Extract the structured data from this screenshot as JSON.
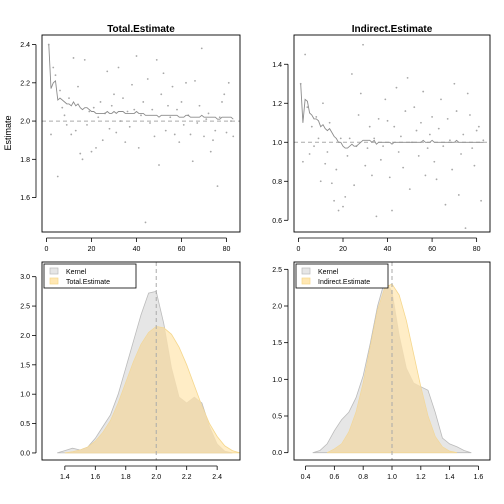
{
  "y_axis_label": "Estimate",
  "chart_data": [
    {
      "type": "scatter",
      "panel": "top-left",
      "title": "Total.Estimate",
      "ylabel": "Estimate",
      "xlim": [
        -2,
        86
      ],
      "ylim": [
        1.42,
        2.45
      ],
      "xticks": [
        0,
        20,
        40,
        60,
        80
      ],
      "yticks": [
        1.6,
        1.8,
        2.0,
        2.2,
        2.4
      ],
      "reference_line": 2.0,
      "points_x": [
        1,
        2,
        3,
        4,
        5,
        6,
        7,
        8,
        9,
        10,
        11,
        12,
        13,
        14,
        15,
        16,
        17,
        18,
        19,
        20,
        21,
        22,
        23,
        24,
        25,
        26,
        27,
        28,
        29,
        30,
        31,
        32,
        33,
        34,
        35,
        36,
        37,
        38,
        39,
        40,
        41,
        42,
        43,
        44,
        45,
        46,
        47,
        48,
        49,
        50,
        51,
        52,
        53,
        54,
        55,
        56,
        57,
        58,
        59,
        60,
        61,
        62,
        63,
        64,
        65,
        66,
        67,
        68,
        69,
        70,
        71,
        72,
        73,
        74,
        75,
        76,
        77,
        78,
        79,
        80,
        81,
        82,
        83
      ],
      "points_y": [
        2.4,
        1.93,
        2.28,
        2.24,
        1.71,
        2.16,
        2.07,
        2.03,
        1.98,
        2.12,
        1.93,
        2.33,
        1.95,
        2.18,
        1.83,
        1.8,
        2.32,
        1.98,
        2.05,
        1.84,
        2.07,
        1.86,
        2.02,
        2.1,
        1.9,
        2.04,
        2.26,
        1.96,
        2.08,
        2.14,
        1.94,
        2.28,
        2.0,
        2.12,
        1.89,
        2.05,
        1.97,
        2.19,
        2.06,
        2.34,
        1.86,
        2.03,
        2.1,
        1.47,
        2.22,
        1.99,
        2.06,
        1.92,
        2.32,
        1.77,
        2.14,
        2.25,
        1.95,
        2.08,
        2.02,
        2.18,
        1.93,
        2.06,
        1.89,
        2.1,
        1.98,
        2.2,
        2.03,
        1.93,
        1.79,
        2.21,
        1.99,
        2.08,
        2.38,
        1.92,
        2.01,
        2.04,
        1.84,
        1.9,
        1.95,
        1.66,
        2.02,
        2.1,
        2.14,
        1.94,
        2.2,
        2.0,
        1.92
      ],
      "running_mean": [
        2.4,
        2.17,
        2.2,
        2.21,
        2.11,
        2.12,
        2.11,
        2.1,
        2.09,
        2.09,
        2.08,
        2.1,
        2.08,
        2.09,
        2.07,
        2.06,
        2.07,
        2.07,
        2.06,
        2.05,
        2.05,
        2.04,
        2.04,
        2.04,
        2.04,
        2.04,
        2.05,
        2.04,
        2.04,
        2.05,
        2.04,
        2.05,
        2.05,
        2.05,
        2.04,
        2.04,
        2.04,
        2.04,
        2.04,
        2.05,
        2.04,
        2.04,
        2.04,
        2.03,
        2.03,
        2.03,
        2.03,
        2.03,
        2.03,
        2.02,
        2.03,
        2.03,
        2.03,
        2.03,
        2.03,
        2.03,
        2.03,
        2.03,
        2.02,
        2.02,
        2.02,
        2.03,
        2.03,
        2.02,
        2.02,
        2.02,
        2.02,
        2.02,
        2.03,
        2.02,
        2.02,
        2.02,
        2.02,
        2.02,
        2.02,
        2.01,
        2.01,
        2.02,
        2.02,
        2.02,
        2.02,
        2.02,
        2.01
      ]
    },
    {
      "type": "scatter",
      "panel": "top-right",
      "title": "Indirect.Estimate",
      "xlim": [
        -2,
        86
      ],
      "ylim": [
        0.54,
        1.55
      ],
      "xticks": [
        0,
        20,
        40,
        60,
        80
      ],
      "yticks": [
        0.6,
        0.8,
        1.0,
        1.2,
        1.4
      ],
      "reference_line": 1.0,
      "points_x": [
        1,
        2,
        3,
        4,
        5,
        6,
        7,
        8,
        9,
        10,
        11,
        12,
        13,
        14,
        15,
        16,
        17,
        18,
        19,
        20,
        21,
        22,
        23,
        24,
        25,
        26,
        27,
        28,
        29,
        30,
        31,
        32,
        33,
        34,
        35,
        36,
        37,
        38,
        39,
        40,
        41,
        42,
        43,
        44,
        45,
        46,
        47,
        48,
        49,
        50,
        51,
        52,
        53,
        54,
        55,
        56,
        57,
        58,
        59,
        60,
        61,
        62,
        63,
        64,
        65,
        66,
        67,
        68,
        69,
        70,
        71,
        72,
        73,
        74,
        75,
        76,
        77,
        78,
        79,
        80,
        81,
        82,
        83
      ],
      "points_y": [
        1.3,
        0.9,
        1.45,
        1.18,
        0.94,
        1.08,
        0.98,
        1.13,
        1.02,
        0.8,
        1.2,
        0.89,
        0.95,
        1.1,
        0.79,
        0.7,
        0.86,
        0.65,
        1.02,
        0.67,
        0.72,
        0.93,
        1.02,
        1.35,
        0.78,
        0.98,
        1.14,
        1.25,
        1.5,
        0.88,
        0.97,
        1.08,
        0.83,
        1.02,
        0.62,
        1.12,
        0.91,
        0.98,
        1.22,
        1.11,
        0.82,
        0.65,
        1.08,
        1.28,
        0.95,
        1.03,
        0.87,
        1.16,
        1.33,
        0.76,
        1.0,
        1.18,
        1.06,
        0.93,
        1.1,
        1.26,
        0.83,
        0.97,
        1.04,
        1.13,
        0.9,
        0.81,
        1.07,
        1.22,
        0.98,
        0.68,
        1.12,
        1.01,
        0.86,
        1.3,
        1.16,
        0.73,
        0.94,
        1.04,
        0.56,
        1.25,
        1.14,
        0.97,
        0.88,
        1.06,
        1.08,
        0.7,
        1.01
      ],
      "running_mean": [
        1.3,
        1.1,
        1.22,
        1.21,
        1.15,
        1.14,
        1.12,
        1.12,
        1.11,
        1.08,
        1.09,
        1.07,
        1.06,
        1.07,
        1.05,
        1.03,
        1.02,
        1.0,
        1.0,
        0.98,
        0.97,
        0.97,
        0.98,
        0.99,
        0.98,
        0.98,
        0.99,
        1.0,
        1.01,
        1.01,
        1.01,
        1.01,
        1.0,
        1.01,
        0.99,
        1.0,
        1.0,
        1.0,
        1.0,
        1.0,
        1.0,
        0.99,
        1.0,
        1.0,
        1.0,
        1.0,
        1.0,
        1.0,
        1.0,
        1.0,
        1.0,
        1.0,
        1.0,
        1.0,
        1.0,
        1.01,
        1.0,
        1.0,
        1.0,
        1.01,
        1.0,
        1.0,
        1.0,
        1.0,
        1.0,
        1.0,
        1.0,
        1.0,
        1.0,
        1.0,
        1.01,
        1.0,
        1.0,
        1.0,
        1.0,
        1.0,
        1.0,
        1.0,
        1.0,
        1.0,
        1.0,
        1.0,
        1.0
      ]
    },
    {
      "type": "area",
      "panel": "bottom-left",
      "xlim": [
        1.25,
        2.55
      ],
      "ylim": [
        -0.12,
        3.25
      ],
      "xticks": [
        1.4,
        1.6,
        1.8,
        2.0,
        2.2,
        2.4
      ],
      "yticks": [
        0.0,
        0.5,
        1.0,
        1.5,
        2.0,
        2.5,
        3.0
      ],
      "reference_line": 2.0,
      "legend": [
        "Kernel",
        "Total.Estimate"
      ],
      "legend_position": "top-left",
      "colors": {
        "kernel_fill": "#e6e6e6",
        "kernel_line": "#bbbbbb",
        "estimate_fill": "#ffe7b3",
        "estimate_line": "#f5d78c",
        "overlap": "#edd8b0"
      },
      "series": [
        {
          "name": "Kernel",
          "x": [
            1.35,
            1.4,
            1.45,
            1.5,
            1.55,
            1.6,
            1.65,
            1.7,
            1.75,
            1.8,
            1.85,
            1.9,
            1.95,
            2.0,
            2.05,
            2.1,
            2.15,
            2.2,
            2.25,
            2.3,
            2.35,
            2.4,
            2.45,
            2.5
          ],
          "y": [
            0.0,
            0.04,
            0.08,
            0.05,
            0.1,
            0.25,
            0.45,
            0.65,
            1.0,
            1.45,
            1.9,
            2.35,
            2.72,
            2.75,
            2.2,
            1.45,
            0.95,
            0.85,
            0.95,
            0.85,
            0.45,
            0.15,
            0.03,
            0.0
          ]
        },
        {
          "name": "Total.Estimate",
          "x": [
            1.4,
            1.45,
            1.5,
            1.55,
            1.6,
            1.65,
            1.7,
            1.75,
            1.8,
            1.85,
            1.9,
            1.95,
            2.0,
            2.05,
            2.1,
            2.15,
            2.2,
            2.25,
            2.3,
            2.35,
            2.4,
            2.45,
            2.5,
            2.55
          ],
          "y": [
            0.0,
            0.02,
            0.05,
            0.1,
            0.2,
            0.35,
            0.55,
            0.85,
            1.2,
            1.55,
            1.85,
            2.05,
            2.15,
            2.13,
            2.02,
            1.8,
            1.5,
            1.15,
            0.8,
            0.5,
            0.28,
            0.12,
            0.04,
            0.0
          ]
        }
      ]
    },
    {
      "type": "area",
      "panel": "bottom-right",
      "xlim": [
        0.32,
        1.68
      ],
      "ylim": [
        -0.1,
        2.6
      ],
      "xticks": [
        0.4,
        0.6,
        0.8,
        1.0,
        1.2,
        1.4,
        1.6
      ],
      "yticks": [
        0.0,
        0.5,
        1.0,
        1.5,
        2.0,
        2.5
      ],
      "reference_line": 1.0,
      "legend": [
        "Kernel",
        "Indirect.Estimate"
      ],
      "legend_position": "top-left",
      "colors": {
        "kernel_fill": "#e6e6e6",
        "kernel_line": "#bbbbbb",
        "estimate_fill": "#ffe7b3",
        "estimate_line": "#f5d78c",
        "overlap": "#edd8b0"
      },
      "series": [
        {
          "name": "Kernel",
          "x": [
            0.45,
            0.5,
            0.55,
            0.6,
            0.65,
            0.7,
            0.75,
            0.8,
            0.85,
            0.9,
            0.95,
            1.0,
            1.05,
            1.1,
            1.15,
            1.2,
            1.25,
            1.3,
            1.35,
            1.4,
            1.45,
            1.5,
            1.55
          ],
          "y": [
            0.0,
            0.03,
            0.12,
            0.3,
            0.45,
            0.55,
            0.75,
            1.05,
            1.5,
            2.0,
            2.35,
            2.2,
            1.6,
            1.15,
            0.95,
            0.9,
            0.85,
            0.55,
            0.2,
            0.12,
            0.08,
            0.03,
            0.0
          ]
        },
        {
          "name": "Indirect.Estimate",
          "x": [
            0.55,
            0.6,
            0.65,
            0.7,
            0.75,
            0.8,
            0.85,
            0.9,
            0.95,
            1.0,
            1.05,
            1.1,
            1.15,
            1.2,
            1.25,
            1.3,
            1.35,
            1.4,
            1.45
          ],
          "y": [
            0.0,
            0.05,
            0.12,
            0.28,
            0.55,
            0.95,
            1.45,
            1.95,
            2.25,
            2.3,
            2.15,
            1.8,
            1.35,
            0.9,
            0.5,
            0.22,
            0.08,
            0.02,
            0.0
          ]
        }
      ]
    }
  ]
}
